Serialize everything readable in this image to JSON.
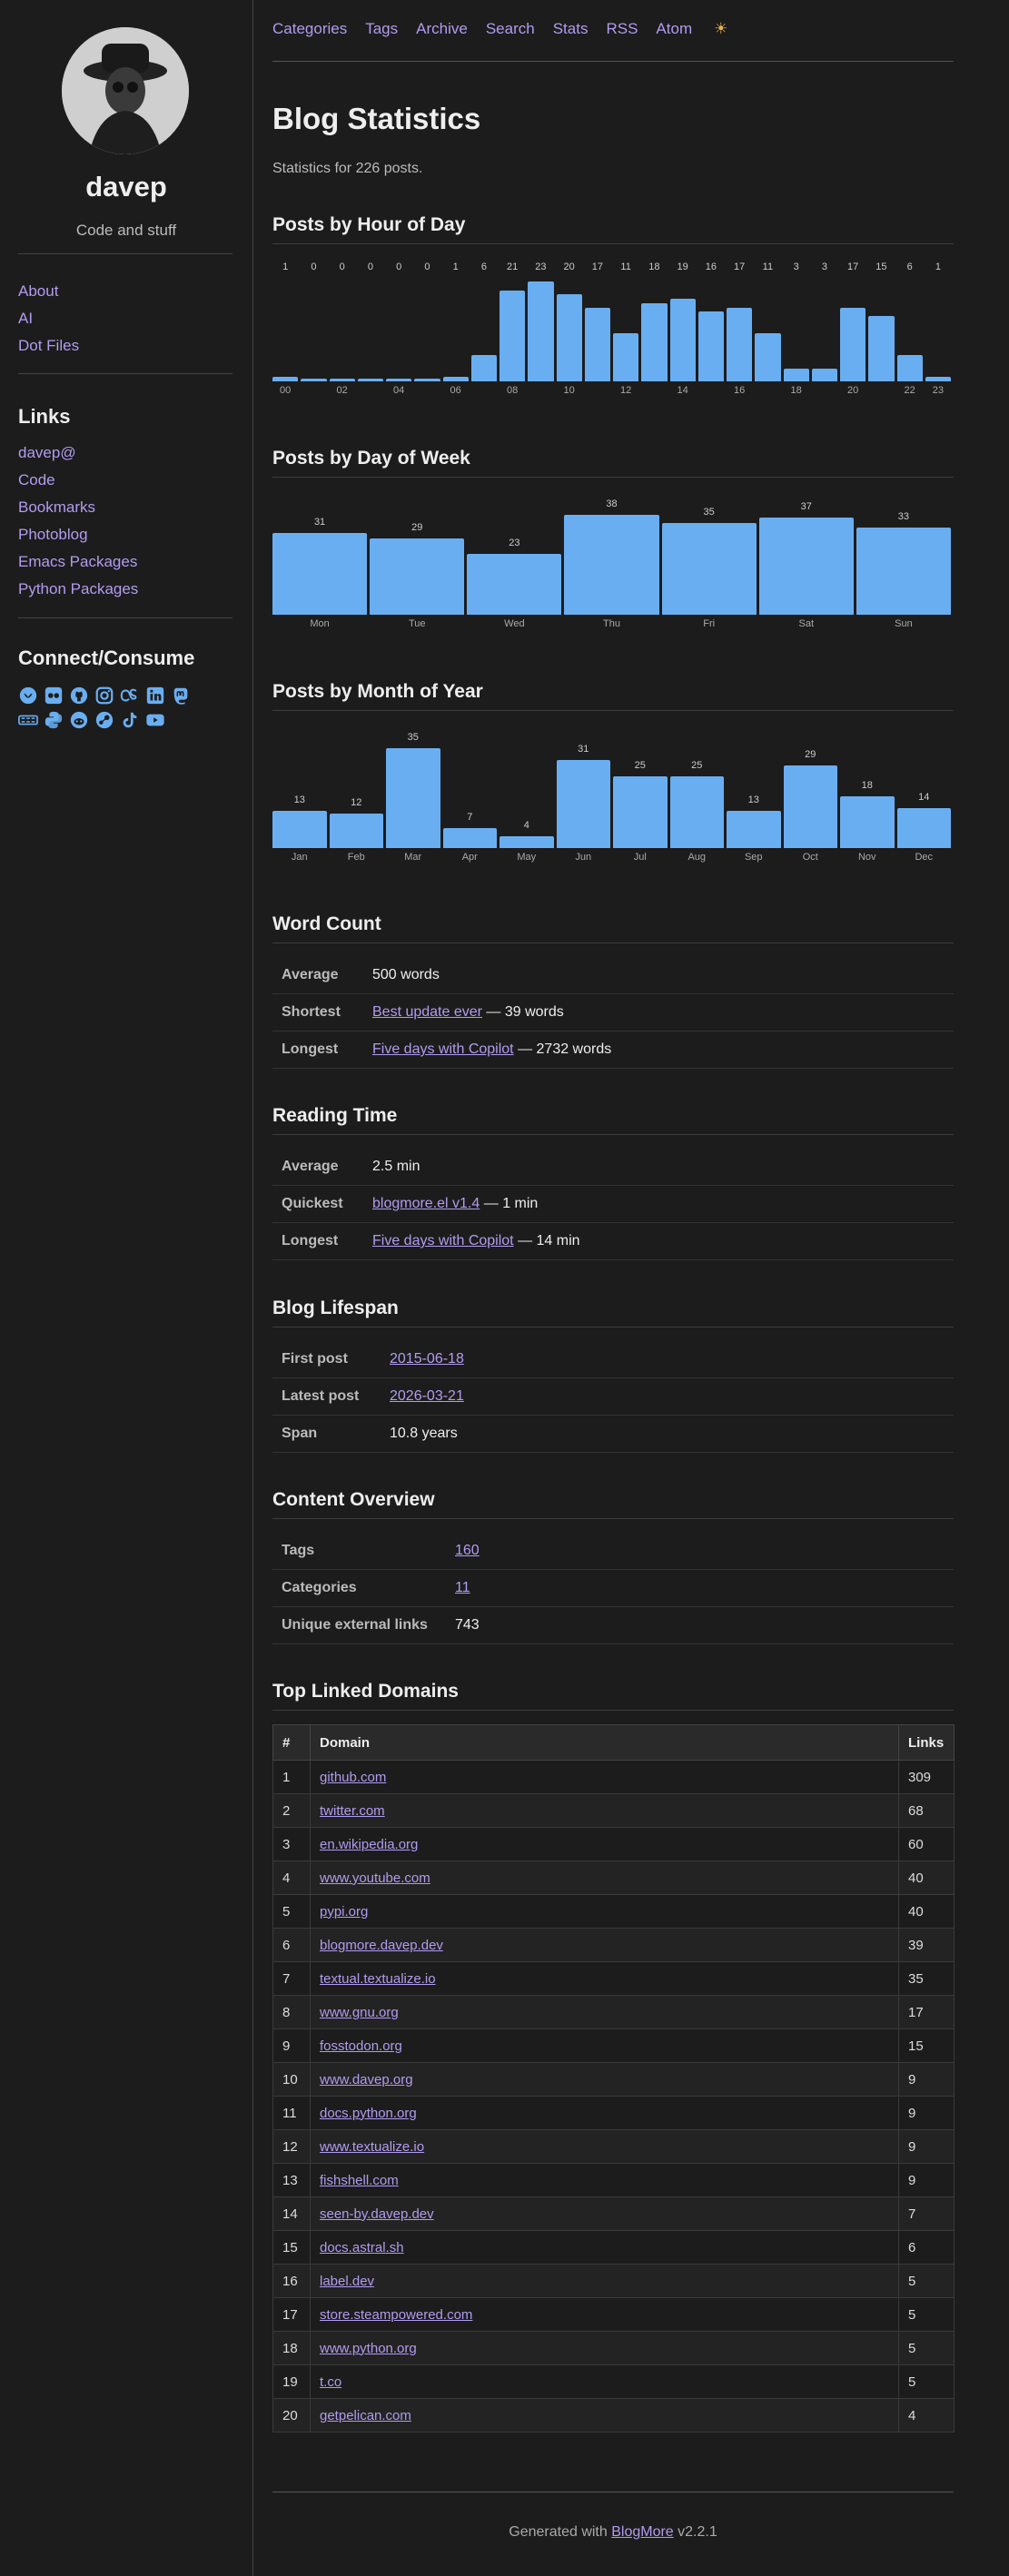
{
  "sidebar": {
    "site_name": "davep",
    "tagline": "Code and stuff",
    "pages": [
      "About",
      "AI",
      "Dot Files"
    ],
    "links_heading": "Links",
    "links": [
      "davep@",
      "Code",
      "Bookmarks",
      "Photoblog",
      "Emacs Packages",
      "Python Packages"
    ],
    "connect_heading": "Connect/Consume",
    "icons_row1": [
      "bluesky-icon",
      "flickr-icon",
      "github-icon",
      "instagram-icon",
      "lastfm-icon",
      "linkedin-icon",
      "mastodon-icon"
    ],
    "icons_row2": [
      "rss-icon",
      "python-icon",
      "reddit-icon",
      "steam-icon",
      "tiktok-icon",
      "youtube-icon"
    ]
  },
  "nav": {
    "items": [
      "Categories",
      "Tags",
      "Archive",
      "Search",
      "Stats",
      "RSS",
      "Atom"
    ],
    "theme_icon": "☀"
  },
  "page": {
    "title": "Blog Statistics",
    "intro": "Statistics for 226 posts."
  },
  "sections": {
    "hour": "Posts by Hour of Day",
    "day": "Posts by Day of Week",
    "month": "Posts by Month of Year",
    "words": "Word Count",
    "reading": "Reading Time",
    "lifespan": "Blog Lifespan",
    "content": "Content Overview",
    "domains": "Top Linked Domains"
  },
  "chart_data": [
    {
      "type": "bar",
      "title": "Posts by Hour of Day",
      "categories": [
        "00",
        "01",
        "02",
        "03",
        "04",
        "05",
        "06",
        "07",
        "08",
        "09",
        "10",
        "11",
        "12",
        "13",
        "14",
        "15",
        "16",
        "17",
        "18",
        "19",
        "20",
        "21",
        "22",
        "23"
      ],
      "tick_labels": [
        "00",
        "02",
        "04",
        "06",
        "08",
        "10",
        "12",
        "14",
        "16",
        "18",
        "20",
        "22",
        "23"
      ],
      "values": [
        1,
        0,
        0,
        0,
        0,
        0,
        1,
        6,
        21,
        23,
        20,
        17,
        11,
        18,
        19,
        16,
        17,
        11,
        3,
        3,
        17,
        15,
        6,
        1
      ],
      "colors": {
        "bar": "#6aaef2"
      }
    },
    {
      "type": "bar",
      "title": "Posts by Day of Week",
      "categories": [
        "Mon",
        "Tue",
        "Wed",
        "Thu",
        "Fri",
        "Sat",
        "Sun"
      ],
      "values": [
        31,
        29,
        23,
        38,
        35,
        37,
        33
      ],
      "colors": {
        "bar": "#6aaef2"
      }
    },
    {
      "type": "bar",
      "title": "Posts by Month of Year",
      "categories": [
        "Jan",
        "Feb",
        "Mar",
        "Apr",
        "May",
        "Jun",
        "Jul",
        "Aug",
        "Sep",
        "Oct",
        "Nov",
        "Dec"
      ],
      "values": [
        13,
        12,
        35,
        7,
        4,
        31,
        25,
        25,
        13,
        29,
        18,
        14
      ],
      "colors": {
        "bar": "#6aaef2"
      }
    }
  ],
  "word_count": {
    "average_label": "Average",
    "average": "500 words",
    "shortest_label": "Shortest",
    "shortest_link": "Best update ever",
    "shortest_suffix": " — 39 words",
    "longest_label": "Longest",
    "longest_link": "Five days with Copilot",
    "longest_suffix": " — 2732 words"
  },
  "reading_time": {
    "average_label": "Average",
    "average": "2.5 min",
    "quickest_label": "Quickest",
    "quickest_link": "blogmore.el v1.4",
    "quickest_suffix": " — 1 min",
    "longest_label": "Longest",
    "longest_link": "Five days with Copilot",
    "longest_suffix": " — 14 min"
  },
  "lifespan": {
    "first_label": "First post",
    "first": "2015-06-18",
    "latest_label": "Latest post",
    "latest": "2026-03-21",
    "span_label": "Span",
    "span": "10.8 years"
  },
  "content": {
    "tags_label": "Tags",
    "tags": "160",
    "categories_label": "Categories",
    "categories": "11",
    "links_label": "Unique external links",
    "links": "743"
  },
  "domains": {
    "headers": [
      "#",
      "Domain",
      "Links"
    ],
    "rows": [
      [
        "1",
        "github.com",
        "309"
      ],
      [
        "2",
        "twitter.com",
        "68"
      ],
      [
        "3",
        "en.wikipedia.org",
        "60"
      ],
      [
        "4",
        "www.youtube.com",
        "40"
      ],
      [
        "5",
        "pypi.org",
        "40"
      ],
      [
        "6",
        "blogmore.davep.dev",
        "39"
      ],
      [
        "7",
        "textual.textualize.io",
        "35"
      ],
      [
        "8",
        "www.gnu.org",
        "17"
      ],
      [
        "9",
        "fosstodon.org",
        "15"
      ],
      [
        "10",
        "www.davep.org",
        "9"
      ],
      [
        "11",
        "docs.python.org",
        "9"
      ],
      [
        "12",
        "www.textualize.io",
        "9"
      ],
      [
        "13",
        "fishshell.com",
        "9"
      ],
      [
        "14",
        "seen-by.davep.dev",
        "7"
      ],
      [
        "15",
        "docs.astral.sh",
        "6"
      ],
      [
        "16",
        "label.dev",
        "5"
      ],
      [
        "17",
        "store.steampowered.com",
        "5"
      ],
      [
        "18",
        "www.python.org",
        "5"
      ],
      [
        "19",
        "t.co",
        "5"
      ],
      [
        "20",
        "getpelican.com",
        "4"
      ]
    ]
  },
  "footer": {
    "prefix": "Generated with ",
    "link": "BlogMore",
    "suffix": " v2.2.1"
  }
}
